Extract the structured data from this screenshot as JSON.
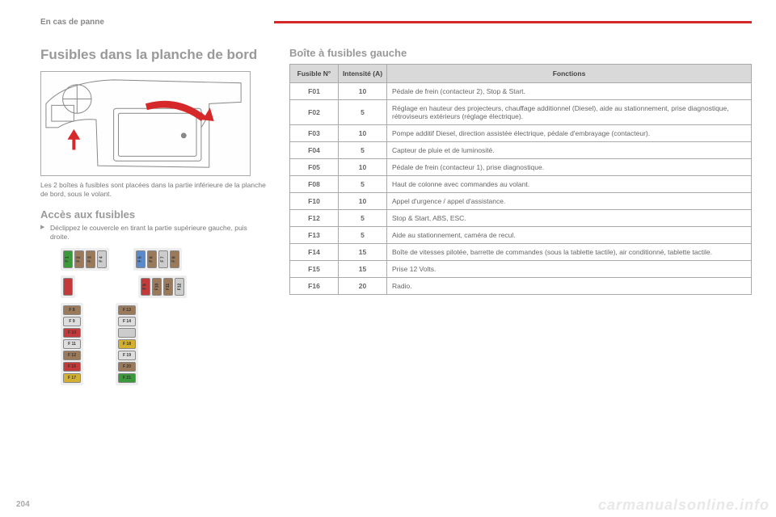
{
  "header": {
    "section": "En cas de panne"
  },
  "page_number": "204",
  "watermark": "carmanualsonline.info",
  "title": "Fusibles dans la planche de bord",
  "caption": "Les 2 boîtes à fusibles sont placées dans la partie inférieure de la planche de bord, sous le volant.",
  "access_heading": "Accès aux fusibles",
  "access_bullet": "Déclippez le couvercle en tirant la partie supérieure gauche, puis droite.",
  "right_heading": "Boîte à fusibles gauche",
  "table": {
    "columns": [
      "Fusible N°",
      "Intensité (A)",
      "Fonctions"
    ],
    "rows": [
      [
        "F01",
        "10",
        "Pédale de frein (contacteur 2), Stop & Start."
      ],
      [
        "F02",
        "5",
        "Réglage en hauteur des projecteurs, chauffage additionnel (Diesel), aide au stationnement, prise diagnostique, rétroviseurs extérieurs (réglage électrique)."
      ],
      [
        "F03",
        "10",
        "Pompe additif Diesel, direction assistée électrique, pédale d'embrayage (contacteur)."
      ],
      [
        "F04",
        "5",
        "Capteur de pluie et de luminosité."
      ],
      [
        "F05",
        "10",
        "Pédale de frein (contacteur 1), prise diagnostique."
      ],
      [
        "F08",
        "5",
        "Haut de colonne avec commandes au volant."
      ],
      [
        "F10",
        "10",
        "Appel d'urgence / appel d'assistance."
      ],
      [
        "F12",
        "5",
        "Stop & Start, ABS, ESC."
      ],
      [
        "F13",
        "5",
        "Aide au stationnement, caméra de recul."
      ],
      [
        "F14",
        "15",
        "Boîte de vitesses pilotée, barrette de commandes (sous la tablette tactile), air conditionné, tablette tactile."
      ],
      [
        "F15",
        "15",
        "Prise 12 Volts."
      ],
      [
        "F16",
        "20",
        "Radio."
      ]
    ]
  },
  "fuse_layout": {
    "top_left": [
      {
        "lbl": "F 1",
        "bg": "#3a9a3a"
      },
      {
        "lbl": "F 2",
        "bg": "#9a7a5a"
      },
      {
        "lbl": "F 3",
        "bg": "#9a7a5a"
      },
      {
        "lbl": "F 4",
        "bg": "#cccccc"
      }
    ],
    "top_right": [
      {
        "lbl": "F 5",
        "bg": "#5a8acc"
      },
      {
        "lbl": "F 6",
        "bg": "#9a7a5a"
      },
      {
        "lbl": "F 7",
        "bg": "#cccccc"
      },
      {
        "lbl": "F 8",
        "bg": "#9a7a5a"
      }
    ],
    "mid_left": [
      {
        "lbl": "",
        "bg": "#c23a3a"
      }
    ],
    "mid_right": [
      {
        "lbl": "F 9",
        "bg": "#c23a3a"
      },
      {
        "lbl": "F10",
        "bg": "#9a7a5a"
      },
      {
        "lbl": "F11",
        "bg": "#9a7a5a"
      },
      {
        "lbl": "F12",
        "bg": "#cccccc"
      }
    ],
    "bot_left": [
      {
        "lbl": "F 8",
        "bg": "#9a7a5a"
      },
      {
        "lbl": "F 9",
        "bg": "#dddddd"
      },
      {
        "lbl": "F 10",
        "bg": "#c23a3a"
      },
      {
        "lbl": "F 11",
        "bg": "#dddddd"
      },
      {
        "lbl": "F 12",
        "bg": "#9a7a5a"
      },
      {
        "lbl": "F 15",
        "bg": "#c23a3a"
      },
      {
        "lbl": "F 17",
        "bg": "#d4b030"
      }
    ],
    "bot_right": [
      {
        "lbl": "F 13",
        "bg": "#9a7a5a"
      },
      {
        "lbl": "F 14",
        "bg": "#dddddd"
      },
      {
        "lbl": "",
        "bg": "#cccccc"
      },
      {
        "lbl": "F 18",
        "bg": "#d4b030"
      },
      {
        "lbl": "F 19",
        "bg": "#dddddd"
      },
      {
        "lbl": "F 20",
        "bg": "#9a7a5a"
      },
      {
        "lbl": "F 21",
        "bg": "#3a9a3a"
      }
    ]
  },
  "colors": {
    "accent": "#d62828",
    "grey_text": "#999999",
    "border": "#aaaaaa"
  }
}
